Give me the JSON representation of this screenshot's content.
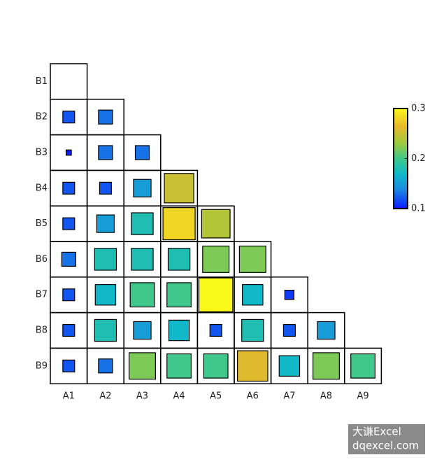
{
  "chart_data": {
    "type": "heatmap",
    "x_categories": [
      "A1",
      "A2",
      "A3",
      "A4",
      "A5",
      "A6",
      "A7",
      "A8",
      "A9"
    ],
    "y_categories": [
      "B1",
      "B2",
      "B3",
      "B4",
      "B5",
      "B6",
      "B7",
      "B8",
      "B9"
    ],
    "values": [
      [
        null,
        null,
        null,
        null,
        null,
        null,
        null,
        null,
        null
      ],
      [
        0.12,
        0.13,
        null,
        null,
        null,
        null,
        null,
        null,
        null
      ],
      [
        0.1,
        0.13,
        0.13,
        null,
        null,
        null,
        null,
        null,
        null
      ],
      [
        0.12,
        0.12,
        0.15,
        0.25,
        null,
        null,
        null,
        null,
        null
      ],
      [
        0.12,
        0.15,
        0.18,
        0.28,
        0.24,
        null,
        null,
        null,
        null
      ],
      [
        0.13,
        0.18,
        0.18,
        0.18,
        0.22,
        0.22,
        null,
        null,
        null
      ],
      [
        0.12,
        0.17,
        0.2,
        0.2,
        0.3,
        0.17,
        0.11,
        null,
        null
      ],
      [
        0.12,
        0.18,
        0.15,
        0.17,
        0.12,
        0.18,
        0.12,
        0.15,
        null
      ],
      [
        0.12,
        0.13,
        0.22,
        0.2,
        0.2,
        0.26,
        0.17,
        0.22,
        0.2
      ]
    ],
    "clim": [
      0.1,
      0.3
    ],
    "cticks": [
      0.1,
      0.2,
      0.3
    ],
    "colormap": "parula",
    "watermark": [
      "大谦Excel",
      "dqexcel.com"
    ]
  }
}
